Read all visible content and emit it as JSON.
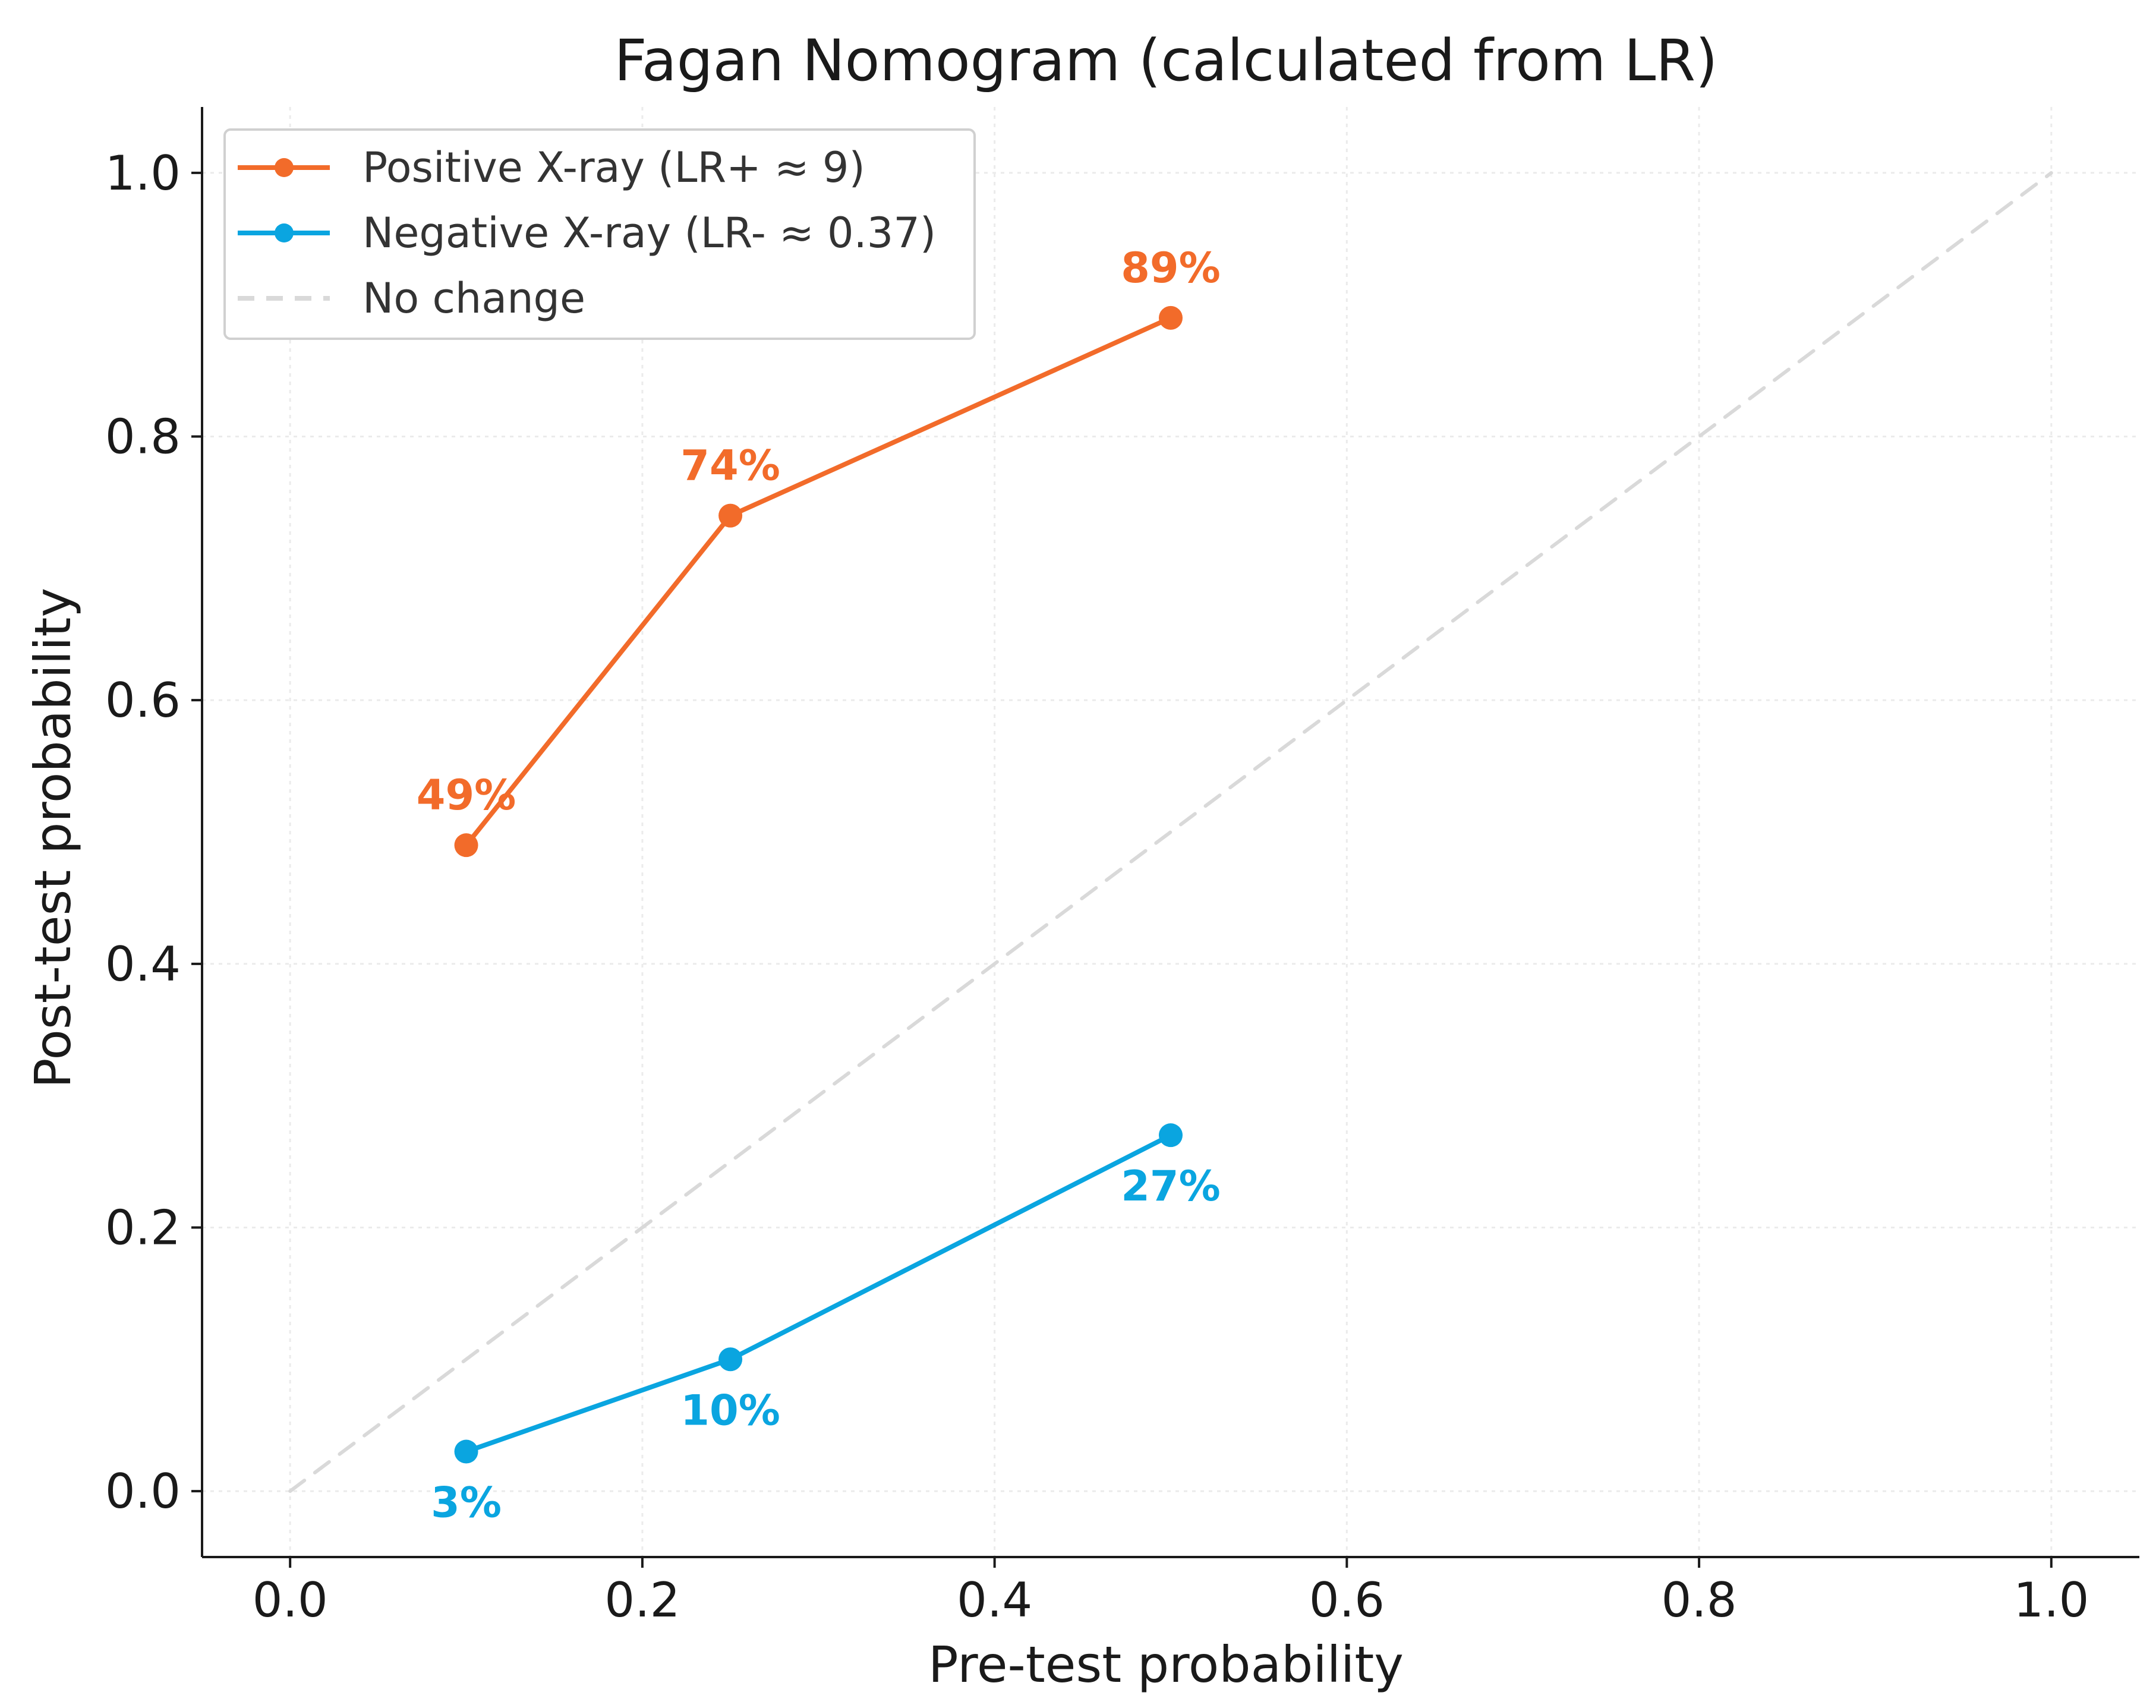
{
  "chart_data": {
    "type": "line",
    "title": "Fagan Nomogram (calculated from LR)",
    "xlabel": "Pre-test probability",
    "ylabel": "Post-test probability",
    "xlim": [
      -0.05,
      1.05
    ],
    "ylim": [
      -0.05,
      1.05
    ],
    "xticks": [
      0.0,
      0.2,
      0.4,
      0.6,
      0.8,
      1.0
    ],
    "yticks": [
      0.0,
      0.2,
      0.4,
      0.6,
      0.8,
      1.0
    ],
    "xtick_labels": [
      "0.0",
      "0.2",
      "0.4",
      "0.6",
      "0.8",
      "1.0"
    ],
    "ytick_labels": [
      "0.0",
      "0.2",
      "0.4",
      "0.6",
      "0.8",
      "1.0"
    ],
    "grid": true,
    "legend_position": "top-left",
    "series": [
      {
        "name": "Positive X-ray (LR+ ≈ 9)",
        "color": "#f26b2a",
        "marker": "circle",
        "x": [
          0.1,
          0.25,
          0.5
        ],
        "y": [
          0.49,
          0.74,
          0.89
        ],
        "labels": [
          "49%",
          "74%",
          "89%"
        ],
        "label_placement": "above"
      },
      {
        "name": "Negative X-ray (LR- ≈ 0.37)",
        "color": "#0aa5e0",
        "marker": "circle",
        "x": [
          0.1,
          0.25,
          0.5
        ],
        "y": [
          0.03,
          0.1,
          0.27
        ],
        "labels": [
          "3%",
          "10%",
          "27%"
        ],
        "label_placement": "below"
      },
      {
        "name": "No change",
        "color": "#d9d9d9",
        "style": "dashed",
        "x": [
          0.0,
          1.0
        ],
        "y": [
          0.0,
          1.0
        ]
      }
    ]
  }
}
